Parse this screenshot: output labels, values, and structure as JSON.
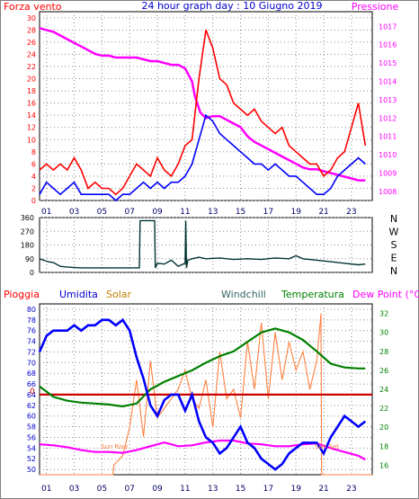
{
  "chart_data": [
    {
      "type": "line",
      "header_title": "24 hour graph day : 10 Giugno 2019",
      "left_label": "Forza vento",
      "right_label": "Pressione",
      "x_ticks": [
        "01",
        "03",
        "05",
        "07",
        "09",
        "11",
        "13",
        "15",
        "17",
        "19",
        "21",
        "23"
      ],
      "y_left_ticks": [
        "0",
        "2",
        "4",
        "6",
        "8",
        "10",
        "12",
        "14",
        "16",
        "18",
        "20",
        "22",
        "24",
        "26",
        "28",
        "30"
      ],
      "y_left_range": [
        0,
        31
      ],
      "y_right_ticks": [
        "1008",
        "1009",
        "1010",
        "1011",
        "1012",
        "1013",
        "1014",
        "1015",
        "1016",
        "1017"
      ],
      "y_right_range": [
        1007.5,
        1017.8
      ],
      "colors": {
        "gust": "#ff0000",
        "wind": "#0000ff",
        "pressure": "#ff00ff"
      },
      "series": [
        {
          "key": "pressure",
          "x": [
            0,
            0.5,
            1,
            1.5,
            2,
            2.5,
            3,
            3.5,
            4,
            4.5,
            5,
            5.5,
            6,
            6.5,
            7,
            7.5,
            8,
            8.5,
            9,
            9.5,
            10,
            10.5,
            11,
            11.2,
            11.6,
            12,
            12.5,
            13,
            13.5,
            14,
            14.5,
            15,
            15.5,
            16,
            16.5,
            17,
            17.5,
            18,
            18.5,
            19,
            19.5,
            20,
            20.5,
            21,
            21.5,
            22,
            22.5,
            23,
            23.5
          ],
          "values": [
            1016.9,
            1016.8,
            1016.7,
            1016.5,
            1016.3,
            1016.1,
            1015.9,
            1015.7,
            1015.5,
            1015.4,
            1015.4,
            1015.3,
            1015.3,
            1015.3,
            1015.3,
            1015.2,
            1015.1,
            1015.1,
            1015.0,
            1014.9,
            1014.9,
            1014.7,
            1014.0,
            1013.2,
            1012.3,
            1012.0,
            1012.1,
            1012.1,
            1011.9,
            1011.7,
            1011.5,
            1011.0,
            1010.7,
            1010.5,
            1010.3,
            1010.1,
            1009.9,
            1009.7,
            1009.5,
            1009.3,
            1009.2,
            1009.2,
            1009.1,
            1009.0,
            1008.9,
            1008.8,
            1008.7,
            1008.6,
            1008.6
          ]
        },
        {
          "key": "gust",
          "x": [
            0,
            0.5,
            1,
            1.5,
            2,
            2.5,
            3,
            3.5,
            4,
            4.5,
            5,
            5.5,
            6,
            6.5,
            7,
            7.5,
            8,
            8.5,
            9,
            9.5,
            10,
            10.5,
            11,
            11.5,
            12,
            12.5,
            13,
            13.5,
            14,
            14.5,
            15,
            15.5,
            16,
            16.5,
            17,
            17.5,
            18,
            18.5,
            19,
            19.5,
            20,
            20.5,
            21,
            21.5,
            22,
            22.5,
            23,
            23.5
          ],
          "values": [
            5,
            6,
            5,
            6,
            5,
            7,
            5,
            2,
            3,
            2,
            2,
            1,
            2,
            4,
            6,
            5,
            4,
            7,
            5,
            4,
            6,
            9,
            10,
            20,
            28,
            25,
            20,
            19,
            16,
            15,
            14,
            15,
            13,
            12,
            11,
            12,
            9,
            8,
            7,
            6,
            6,
            4,
            5,
            7,
            8,
            12,
            16,
            9
          ]
        },
        {
          "key": "wind",
          "x": [
            0,
            0.5,
            1,
            1.5,
            2,
            2.5,
            3,
            3.5,
            4,
            4.5,
            5,
            5.5,
            6,
            6.5,
            7,
            7.5,
            8,
            8.5,
            9,
            9.5,
            10,
            10.5,
            11,
            11.5,
            12,
            12.5,
            13,
            13.5,
            14,
            14.5,
            15,
            15.5,
            16,
            16.5,
            17,
            17.5,
            18,
            18.5,
            19,
            19.5,
            20,
            20.5,
            21,
            21.5,
            22,
            22.5,
            23,
            23.5
          ],
          "values": [
            1,
            3,
            2,
            1,
            2,
            3,
            1,
            1,
            1,
            1,
            1,
            0,
            1,
            1,
            2,
            3,
            2,
            3,
            2,
            3,
            3,
            4,
            6,
            10,
            14,
            13,
            11,
            10,
            9,
            8,
            7,
            6,
            6,
            5,
            6,
            5,
            4,
            4,
            3,
            2,
            1,
            1,
            2,
            4,
            5,
            6,
            7,
            6
          ]
        }
      ]
    },
    {
      "type": "line",
      "right_labels": [
        "N",
        "W",
        "S",
        "E",
        "N"
      ],
      "y_ticks": [
        "0",
        "90",
        "180",
        "270",
        "360"
      ],
      "y_range": [
        0,
        360
      ],
      "x_ticks": [
        "01",
        "03",
        "05",
        "07",
        "09",
        "11",
        "13",
        "15",
        "17",
        "19",
        "21",
        "23"
      ],
      "colors": {
        "direction": "#003333"
      },
      "series": [
        {
          "key": "direction",
          "x": [
            0,
            0.3,
            0.6,
            1,
            1.5,
            2,
            3,
            4,
            5,
            6,
            7,
            7.2,
            7.25,
            8.3,
            8.35,
            8.5,
            9,
            9.5,
            10,
            10.5,
            10.55,
            10.6,
            10.7,
            11,
            11.5,
            12,
            13,
            14,
            15,
            16,
            17,
            18,
            18.5,
            19,
            20,
            21,
            22,
            23,
            23.5
          ],
          "values": [
            90,
            80,
            70,
            65,
            40,
            35,
            30,
            30,
            30,
            30,
            30,
            30,
            340,
            340,
            30,
            60,
            55,
            80,
            40,
            60,
            340,
            30,
            80,
            90,
            100,
            90,
            95,
            85,
            90,
            85,
            95,
            90,
            110,
            90,
            80,
            70,
            60,
            50,
            55
          ]
        }
      ]
    },
    {
      "type": "line",
      "labels": {
        "rain": "Pioggia",
        "humidity": "Umidita",
        "solar": "Solar",
        "windchill": "Windchill",
        "temperature": "Temperatura",
        "dewpoint": "Dew Point (°C)",
        "solar_left_note": "Sun Rise",
        "solar_right_note": "Sun Set",
        "rain_value": "0"
      },
      "x_ticks": [
        "01",
        "03",
        "05",
        "07",
        "09",
        "11",
        "13",
        "15",
        "17",
        "19",
        "21",
        "23"
      ],
      "y_left_ticks": [
        "50",
        "52",
        "54",
        "56",
        "58",
        "60",
        "62",
        "64",
        "66",
        "68",
        "70",
        "72",
        "74",
        "76",
        "78",
        "80"
      ],
      "y_left_range": [
        49,
        81
      ],
      "y_right_ticks": [
        "16",
        "18",
        "20",
        "22",
        "24",
        "26",
        "28",
        "30",
        "32"
      ],
      "y_right_range": [
        15,
        33
      ],
      "colors": {
        "humidity": "#0000ff",
        "temperature": "#008000",
        "dewpoint": "#ff00ff",
        "solar": "#ff8040",
        "rain": "#cc0000"
      },
      "series": [
        {
          "key": "humidity",
          "x": [
            0,
            0.5,
            1,
            1.5,
            2,
            2.5,
            3,
            3.5,
            4,
            4.5,
            5,
            5.5,
            6,
            6.5,
            7,
            7.5,
            8,
            8.5,
            9,
            9.5,
            10,
            10.5,
            11,
            11.5,
            12,
            12.5,
            13,
            13.5,
            14,
            14.5,
            15,
            15.5,
            16,
            16.5,
            17,
            17.5,
            18,
            18.5,
            19,
            19.5,
            20,
            20.5,
            21,
            21.5,
            22,
            22.5,
            23,
            23.5
          ],
          "values": [
            72,
            75,
            76,
            76,
            76,
            77,
            76,
            77,
            77,
            78,
            78,
            77,
            78,
            76,
            71,
            67,
            62,
            60,
            63,
            64,
            64,
            61,
            64,
            59,
            56,
            55,
            53,
            54,
            56,
            58,
            55,
            54,
            52,
            51,
            50,
            51,
            53,
            54,
            55,
            55,
            55,
            53,
            56,
            58,
            60,
            59,
            58,
            59
          ]
        },
        {
          "key": "temperature",
          "x": [
            0,
            1,
            2,
            3,
            4,
            5,
            6,
            7,
            8,
            9,
            10,
            11,
            12,
            13,
            14,
            15,
            16,
            17,
            18,
            19,
            20,
            21,
            22,
            23,
            23.5
          ],
          "values": [
            24.3,
            23.2,
            22.8,
            22.6,
            22.5,
            22.4,
            22.2,
            22.5,
            24.0,
            24.8,
            25.4,
            26.0,
            26.8,
            27.5,
            28.0,
            29.0,
            30.0,
            30.4,
            30.0,
            29.2,
            28.0,
            26.7,
            26.3,
            26.2,
            26.2
          ]
        },
        {
          "key": "dewpoint",
          "x": [
            0,
            1,
            2,
            3,
            4,
            5,
            6,
            7,
            8,
            9,
            10,
            11,
            12,
            13,
            14,
            15,
            16,
            17,
            18,
            19,
            20,
            21,
            22,
            23,
            23.5
          ],
          "values": [
            18.2,
            18.1,
            17.9,
            17.6,
            17.4,
            17.4,
            17.3,
            17.6,
            18.0,
            18.4,
            18.0,
            18.1,
            18.4,
            18.6,
            18.6,
            18.3,
            18.2,
            18.0,
            18.0,
            18.2,
            18.3,
            17.8,
            17.4,
            17.0,
            16.6
          ]
        },
        {
          "key": "solar",
          "x": [
            0,
            5.3,
            5.35,
            6,
            6.5,
            7,
            7.5,
            8,
            8.5,
            9,
            9.5,
            10,
            10.5,
            11,
            11.5,
            12,
            12.5,
            13,
            13.5,
            14,
            14.5,
            15,
            15.5,
            16,
            16.5,
            17,
            17.5,
            18,
            18.5,
            19,
            19.5,
            20,
            20.3,
            20.35,
            24
          ],
          "values": [
            15,
            15,
            16,
            17,
            20,
            25,
            19,
            27,
            21,
            22,
            23,
            24,
            26,
            23,
            22,
            25,
            20,
            28,
            23,
            24,
            21,
            29,
            24,
            31,
            23,
            30,
            25,
            29,
            26,
            28,
            24,
            27,
            32,
            15,
            15
          ]
        },
        {
          "key": "rain",
          "x": [
            0,
            24
          ],
          "values": [
            64,
            64
          ]
        }
      ]
    }
  ]
}
